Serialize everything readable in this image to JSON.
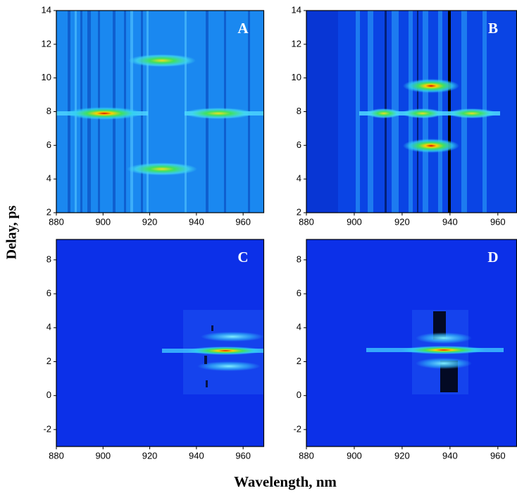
{
  "xlabel": "Wavelength, nm",
  "ylabel": "Delay, ps",
  "chart_data": [
    {
      "type": "heatmap",
      "panel_label": "A",
      "xlim": [
        880,
        969
      ],
      "xticks": [
        880,
        900,
        920,
        940,
        960
      ],
      "ylim": [
        2,
        14
      ],
      "yticks": [
        2,
        4,
        6,
        8,
        10,
        12,
        14
      ]
    },
    {
      "type": "heatmap",
      "panel_label": "B",
      "xlim": [
        880,
        968
      ],
      "xticks": [
        880,
        900,
        920,
        940,
        960
      ],
      "ylim": [
        2,
        14
      ],
      "yticks": [
        2,
        4,
        6,
        8,
        10,
        12,
        14
      ]
    },
    {
      "type": "heatmap",
      "panel_label": "C",
      "xlim": [
        880,
        969
      ],
      "xticks": [
        880,
        900,
        920,
        940,
        960
      ],
      "ylim": [
        -3,
        9.2
      ],
      "yticks": [
        -2,
        0,
        2,
        4,
        6,
        8
      ]
    },
    {
      "type": "heatmap",
      "panel_label": "D",
      "xlim": [
        880,
        968
      ],
      "xticks": [
        880,
        900,
        920,
        940,
        960
      ],
      "ylim": [
        -3,
        9.2
      ],
      "yticks": [
        -2,
        0,
        2,
        4,
        6,
        8
      ]
    }
  ]
}
